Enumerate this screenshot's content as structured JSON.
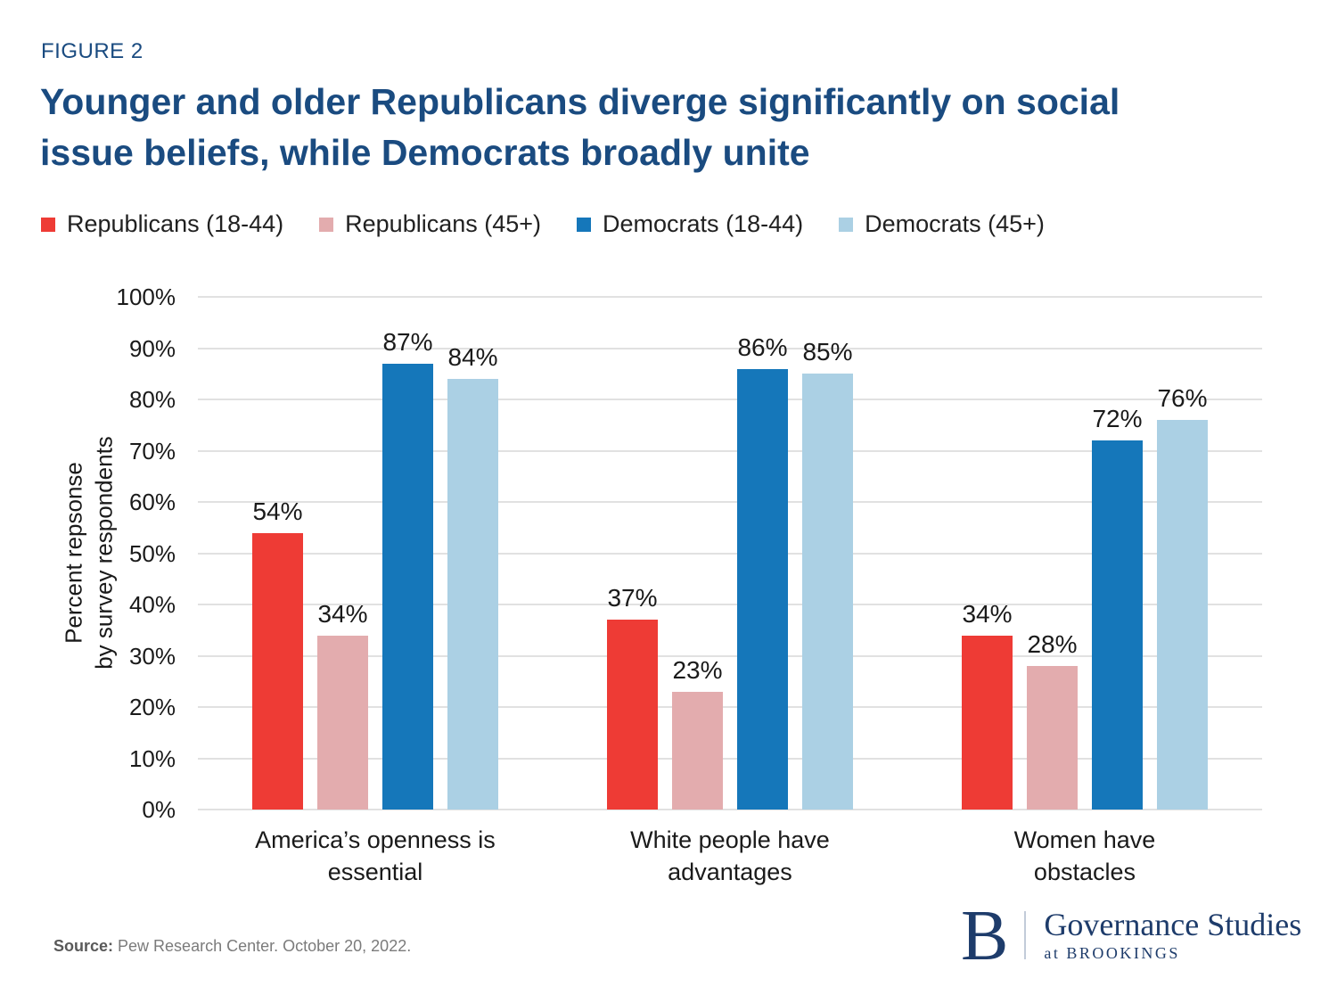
{
  "figure": {
    "label": "FIGURE 2",
    "title": "Younger and older Republicans diverge significantly on social issue beliefs, while Democrats broadly unite",
    "title_lines": [
      "Younger and older Republicans diverge significantly on social",
      "issue beliefs, while Democrats broadly unite"
    ]
  },
  "chart_data": {
    "type": "bar",
    "categories": [
      "America’s openness is essential",
      "White people have advantages",
      "Women have obstacles"
    ],
    "category_lines": [
      [
        "America’s openness is",
        "essential"
      ],
      [
        "White people have",
        "advantages"
      ],
      [
        "Women have",
        "obstacles"
      ]
    ],
    "series": [
      {
        "name": "Republicans (18-44)",
        "color": "#EE3B35",
        "values": [
          54,
          37,
          34
        ]
      },
      {
        "name": "Republicans (45+)",
        "color": "#E3ACAE",
        "values": [
          34,
          23,
          28
        ]
      },
      {
        "name": "Democrats (18-44)",
        "color": "#1577BA",
        "values": [
          87,
          86,
          72
        ]
      },
      {
        "name": "Democrats (45+)",
        "color": "#ABD0E4",
        "values": [
          84,
          85,
          76
        ]
      }
    ],
    "ylabel": "Percent repsonse by survey respondents",
    "ylabel_lines": [
      "Percent repsonse",
      "by survey respondents"
    ],
    "xlabel": "",
    "ylim": [
      0,
      100
    ],
    "y_ticks": [
      0,
      10,
      20,
      30,
      40,
      50,
      60,
      70,
      80,
      90,
      100
    ],
    "tick_suffix": "%",
    "value_suffix": "%",
    "grid": "horizontal",
    "legend_position": "top"
  },
  "source": {
    "label": "Source:",
    "text": " Pew Research Center. October 20, 2022."
  },
  "logo": {
    "letter": "B",
    "line1": "Governance Studies",
    "line2": "at BROOKINGS"
  },
  "colors": {
    "title_navy": "#1A4B80",
    "logo_navy": "#1E3C6B",
    "gridline": "#E1E1E1",
    "text": "#1A1A1A",
    "source_gray": "#7B7B7B"
  }
}
